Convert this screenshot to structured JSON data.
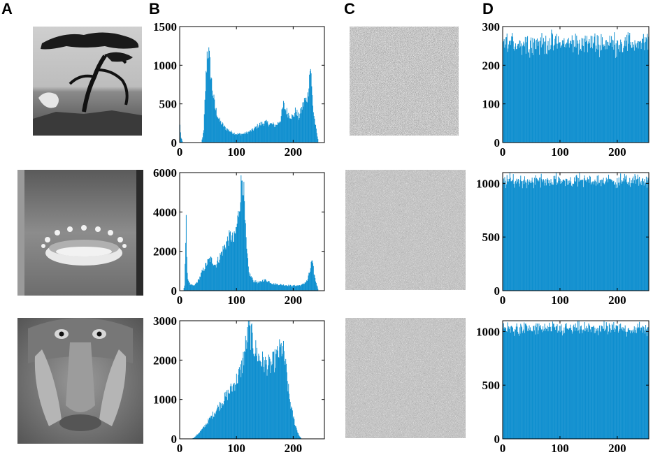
{
  "panels": {
    "a": "A",
    "b": "B",
    "c": "C",
    "d": "D"
  },
  "images": [
    {
      "subject": "tree-landscape-image"
    },
    {
      "subject": "milk-splash-image"
    },
    {
      "subject": "baboon-face-image"
    }
  ],
  "colors": {
    "bar": "#0f8fcf",
    "axis": "#000000",
    "noise_dark": "#222222",
    "noise_light": "#eeeeee"
  },
  "chart_data": [
    {
      "id": "hist-tree-plain",
      "type": "bar",
      "xlim": [
        0,
        255
      ],
      "ylim": [
        0,
        1500
      ],
      "xticks": [
        0,
        100,
        200
      ],
      "yticks": [
        0,
        500,
        1000,
        1500
      ],
      "xlabel": "",
      "ylabel": "",
      "grid": false,
      "profile": [
        [
          0,
          220
        ],
        [
          2,
          60
        ],
        [
          5,
          0
        ],
        [
          38,
          0
        ],
        [
          42,
          150
        ],
        [
          45,
          700
        ],
        [
          48,
          1150
        ],
        [
          50,
          1200
        ],
        [
          53,
          1000
        ],
        [
          57,
          700
        ],
        [
          62,
          450
        ],
        [
          70,
          280
        ],
        [
          80,
          190
        ],
        [
          90,
          140
        ],
        [
          100,
          110
        ],
        [
          110,
          110
        ],
        [
          120,
          130
        ],
        [
          130,
          170
        ],
        [
          140,
          230
        ],
        [
          150,
          260
        ],
        [
          160,
          240
        ],
        [
          170,
          220
        ],
        [
          178,
          300
        ],
        [
          183,
          490
        ],
        [
          187,
          420
        ],
        [
          193,
          360
        ],
        [
          200,
          330
        ],
        [
          205,
          420
        ],
        [
          210,
          320
        ],
        [
          215,
          430
        ],
        [
          220,
          540
        ],
        [
          223,
          550
        ],
        [
          226,
          600
        ],
        [
          229,
          880
        ],
        [
          231,
          990
        ],
        [
          233,
          700
        ],
        [
          236,
          400
        ],
        [
          240,
          200
        ],
        [
          243,
          80
        ],
        [
          245,
          0
        ],
        [
          255,
          0
        ]
      ]
    },
    {
      "id": "hist-splash-plain",
      "type": "bar",
      "xlim": [
        0,
        255
      ],
      "ylim": [
        0,
        6000
      ],
      "xticks": [
        0,
        100,
        200
      ],
      "yticks": [
        0,
        2000,
        4000,
        6000
      ],
      "xlabel": "",
      "ylabel": "",
      "grid": false,
      "profile": [
        [
          0,
          0
        ],
        [
          6,
          0
        ],
        [
          8,
          300
        ],
        [
          10,
          2500
        ],
        [
          11,
          3400
        ],
        [
          12,
          1500
        ],
        [
          14,
          600
        ],
        [
          18,
          300
        ],
        [
          25,
          250
        ],
        [
          32,
          500
        ],
        [
          40,
          1000
        ],
        [
          48,
          1400
        ],
        [
          53,
          1600
        ],
        [
          58,
          1500
        ],
        [
          63,
          1300
        ],
        [
          70,
          1700
        ],
        [
          78,
          2200
        ],
        [
          85,
          2600
        ],
        [
          90,
          2800
        ],
        [
          95,
          2500
        ],
        [
          100,
          3200
        ],
        [
          104,
          4000
        ],
        [
          107,
          5000
        ],
        [
          110,
          5900
        ],
        [
          112,
          5500
        ],
        [
          115,
          3500
        ],
        [
          118,
          2000
        ],
        [
          122,
          900
        ],
        [
          130,
          500
        ],
        [
          140,
          400
        ],
        [
          148,
          550
        ],
        [
          155,
          500
        ],
        [
          165,
          350
        ],
        [
          180,
          300
        ],
        [
          200,
          250
        ],
        [
          215,
          280
        ],
        [
          225,
          500
        ],
        [
          230,
          1000
        ],
        [
          233,
          1500
        ],
        [
          236,
          1100
        ],
        [
          239,
          600
        ],
        [
          242,
          300
        ],
        [
          245,
          0
        ],
        [
          255,
          0
        ]
      ]
    },
    {
      "id": "hist-baboon-plain",
      "type": "bar",
      "xlim": [
        0,
        255
      ],
      "ylim": [
        0,
        3000
      ],
      "xticks": [
        0,
        100,
        200
      ],
      "yticks": [
        0,
        1000,
        2000,
        3000
      ],
      "xlabel": "",
      "ylabel": "",
      "grid": false,
      "profile": [
        [
          0,
          0
        ],
        [
          20,
          0
        ],
        [
          25,
          30
        ],
        [
          30,
          100
        ],
        [
          40,
          250
        ],
        [
          50,
          450
        ],
        [
          60,
          650
        ],
        [
          70,
          850
        ],
        [
          80,
          1050
        ],
        [
          90,
          1250
        ],
        [
          100,
          1500
        ],
        [
          108,
          1750
        ],
        [
          113,
          2100
        ],
        [
          118,
          2500
        ],
        [
          122,
          2750
        ],
        [
          126,
          2600
        ],
        [
          132,
          2300
        ],
        [
          140,
          2050
        ],
        [
          150,
          1900
        ],
        [
          160,
          1850
        ],
        [
          168,
          2000
        ],
        [
          175,
          2200
        ],
        [
          180,
          2300
        ],
        [
          184,
          2150
        ],
        [
          188,
          1700
        ],
        [
          193,
          1100
        ],
        [
          198,
          700
        ],
        [
          204,
          350
        ],
        [
          210,
          100
        ],
        [
          215,
          0
        ],
        [
          255,
          0
        ]
      ]
    },
    {
      "id": "hist-tree-cipher",
      "type": "bar",
      "xlim": [
        0,
        255
      ],
      "ylim": [
        0,
        300
      ],
      "xticks": [
        0,
        100,
        200
      ],
      "yticks": [
        0,
        100,
        200,
        300
      ],
      "xlabel": "",
      "ylabel": "",
      "grid": false,
      "mean": 257,
      "spread": 20
    },
    {
      "id": "hist-splash-cipher",
      "type": "bar",
      "xlim": [
        0,
        255
      ],
      "ylim": [
        0,
        1100
      ],
      "xticks": [
        0,
        100,
        200
      ],
      "yticks": [
        0,
        500,
        1000
      ],
      "xlabel": "",
      "ylabel": "",
      "grid": false,
      "mean": 1024,
      "spread": 45
    },
    {
      "id": "hist-baboon-cipher",
      "type": "bar",
      "xlim": [
        0,
        255
      ],
      "ylim": [
        0,
        1100
      ],
      "xticks": [
        0,
        100,
        200
      ],
      "yticks": [
        0,
        500,
        1000
      ],
      "xlabel": "",
      "ylabel": "",
      "grid": false,
      "mean": 1024,
      "spread": 45
    }
  ]
}
